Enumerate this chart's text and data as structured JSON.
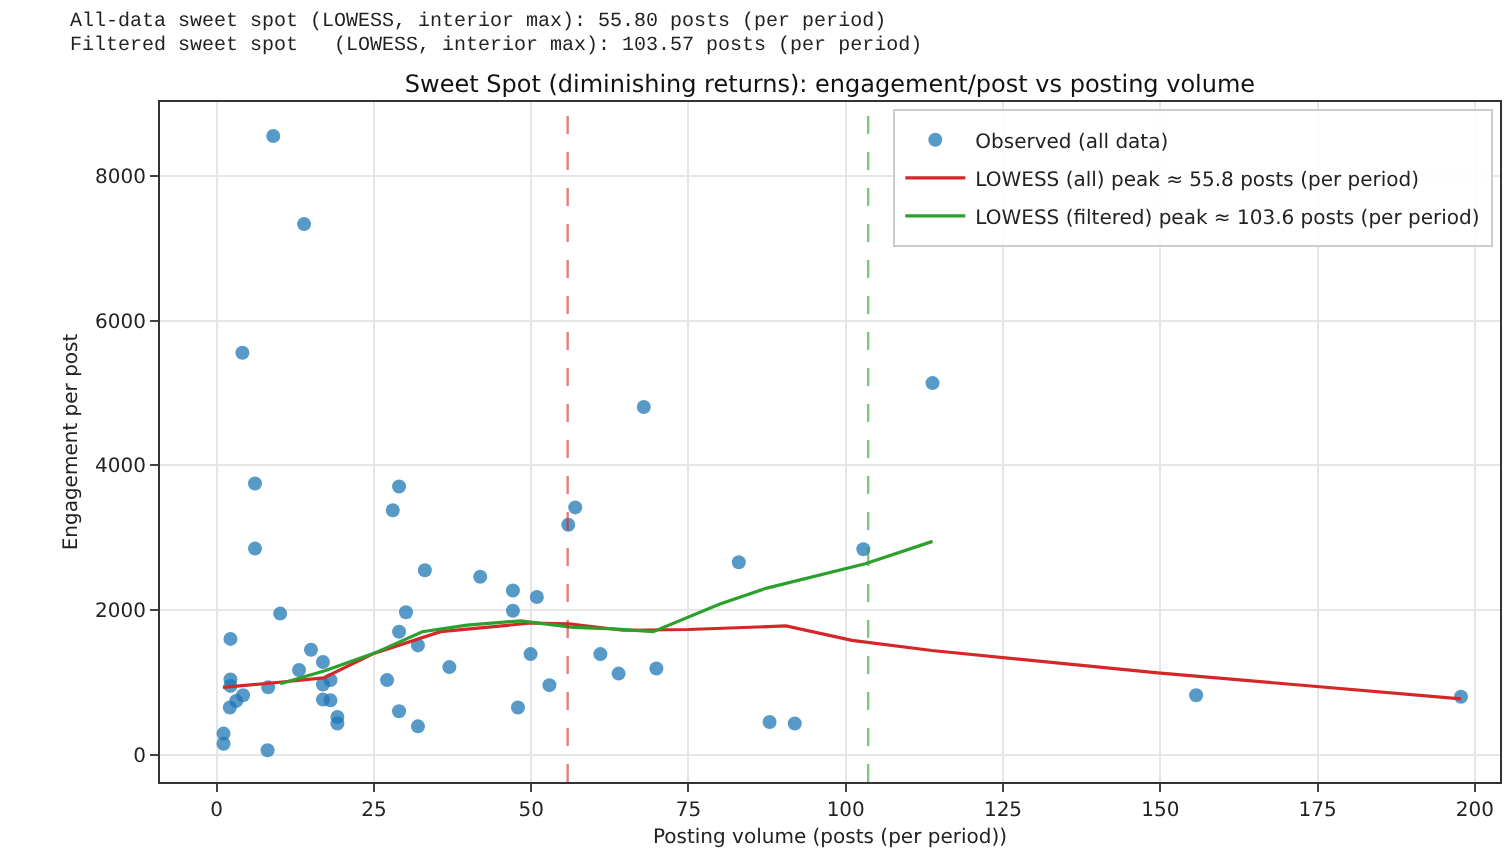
{
  "chart_data": {
    "type": "scatter",
    "title": "Sweet Spot (diminishing returns): engagement/post vs posting volume",
    "xlabel": "Posting volume (posts (per period))",
    "ylabel": "Engagement per post",
    "annotations": [
      "All-data sweet spot (LOWESS, interior max): 55.80 posts (per period)",
      "Filtered sweet spot   (LOWESS, interior max): 103.57 posts (per period)"
    ],
    "series": [
      {
        "name": "Observed (all data)",
        "marker": "circle",
        "color": "#1f77b4",
        "x": [
          9.0,
          13.9,
          4.1,
          6.1,
          6.1,
          10.1,
          2.2,
          2.2,
          2.2,
          2.1,
          3.1,
          4.2,
          1.1,
          1.1,
          8.1,
          8.2,
          13.1,
          15.0,
          16.9,
          16.9,
          18.1,
          16.9,
          18.1,
          19.2,
          19.2,
          27.1,
          28.0,
          29.0,
          29.0,
          30.1,
          29.0,
          32.0,
          32.0,
          33.1,
          37.0,
          41.9,
          47.1,
          47.1,
          47.9,
          49.9,
          50.9,
          52.9,
          55.9,
          57.0,
          61.0,
          63.9,
          67.9,
          69.9,
          83.0,
          87.9,
          91.9,
          102.8,
          113.8,
          155.7,
          197.8
        ],
        "values": [
          8560,
          7340,
          5560,
          3750,
          2850,
          1950,
          1600,
          1040,
          950,
          650,
          740,
          820,
          290,
          150,
          60,
          930,
          1170,
          1450,
          1280,
          970,
          1030,
          760,
          750,
          520,
          430,
          1030,
          3380,
          3710,
          1700,
          1970,
          600,
          1510,
          390,
          2550,
          1210,
          2460,
          2270,
          1990,
          650,
          1390,
          2180,
          960,
          3180,
          3420,
          1390,
          1120,
          4810,
          1190,
          2660,
          450,
          430,
          2840,
          5140,
          820,
          800
        ]
      },
      {
        "name": "LOWESS (all) peak ≈ 55.8 posts (per period)",
        "type": "line",
        "color": "#d62728",
        "x": [
          1,
          10,
          17,
          25,
          35.6,
          50,
          56,
          64.6,
          75,
          90.5,
          101,
          113.7,
          149.6,
          197.8
        ],
        "values": [
          930,
          1000,
          1060,
          1400,
          1700,
          1820,
          1810,
          1720,
          1730,
          1780,
          1580,
          1440,
          1130,
          770
        ]
      },
      {
        "name": "LOWESS (filtered) peak ≈ 103.6 posts (per period)",
        "type": "line",
        "color": "#2ca02c",
        "x": [
          10.1,
          17.2,
          25,
          32.7,
          39.8,
          48.3,
          56.7,
          63,
          69.4,
          79.9,
          87.3,
          103.1,
          113.8
        ],
        "values": [
          980,
          1160,
          1400,
          1700,
          1790,
          1850,
          1760,
          1740,
          1700,
          2080,
          2300,
          2640,
          2950
        ]
      }
    ],
    "ref_lines": [
      {
        "axis": "x",
        "value": 55.8,
        "color": "#d62728",
        "line_style": "dashed"
      },
      {
        "axis": "x",
        "value": 103.57,
        "color": "#2ca02c",
        "line_style": "dashed"
      }
    ],
    "xlim": [
      -9,
      204
    ],
    "xticks": [
      0,
      25,
      50,
      75,
      100,
      125,
      150,
      175,
      200
    ],
    "ylim": [
      -380,
      9030
    ],
    "yticks": [
      0,
      2000,
      4000,
      6000,
      8000
    ],
    "grid": true,
    "legend": "top right"
  }
}
